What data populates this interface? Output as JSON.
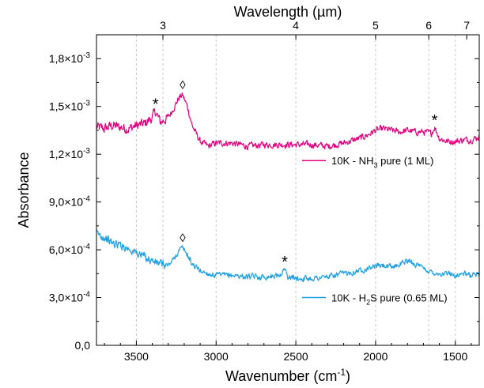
{
  "chart_data": {
    "type": "line",
    "title": "",
    "xlabel": "Wavenumber (cm",
    "xlabel_sup": "-1",
    "xlabel_end": ")",
    "ylabel": "Absorbance",
    "top_xlabel": "Wavelength (µm)",
    "xlim": [
      3750,
      1350
    ],
    "ylim": [
      0,
      0.00195
    ],
    "x_ticks": [
      {
        "value": 3500,
        "label": "3500"
      },
      {
        "value": 3000,
        "label": "3000"
      },
      {
        "value": 2500,
        "label": "2500"
      },
      {
        "value": 2000,
        "label": "2000"
      },
      {
        "value": 1500,
        "label": "1500"
      }
    ],
    "y_ticks": [
      {
        "value": 0,
        "label": "0,0",
        "exp": ""
      },
      {
        "value": 0.0003,
        "label": "3,0×10",
        "exp": "-4"
      },
      {
        "value": 0.0006,
        "label": "6,0×10",
        "exp": "-4"
      },
      {
        "value": 0.0009,
        "label": "9,0×10",
        "exp": "-4"
      },
      {
        "value": 0.0012,
        "label": "1,2×10",
        "exp": "-3"
      },
      {
        "value": 0.0015,
        "label": "1,5×10",
        "exp": "-3"
      },
      {
        "value": 0.0018,
        "label": "1,8×10",
        "exp": "-3"
      }
    ],
    "top_ticks": [
      {
        "wavenumber": 3333.3,
        "label": "3"
      },
      {
        "wavenumber": 2500,
        "label": "4"
      },
      {
        "wavenumber": 2000,
        "label": "5"
      },
      {
        "wavenumber": 1666.7,
        "label": "6"
      },
      {
        "wavenumber": 1428.6,
        "label": "7"
      }
    ],
    "gridlines_x": [
      3500,
      3333.3,
      3000,
      2500,
      2000,
      1666.7,
      1500
    ],
    "grid": "vertical dashed",
    "legend_placement": "right, next to each curve",
    "series": [
      {
        "name_pre": "10K - NH",
        "name_sub": "3",
        "name_post": " pure (1 ML)",
        "color": "#e6007e",
        "noise": 3.5e-05,
        "x": [
          3750,
          3700,
          3650,
          3600,
          3550,
          3500,
          3450,
          3400,
          3380,
          3350,
          3300,
          3260,
          3230,
          3210,
          3180,
          3150,
          3100,
          3050,
          3000,
          2900,
          2800,
          2700,
          2600,
          2500,
          2400,
          2300,
          2200,
          2100,
          2050,
          2000,
          1950,
          1900,
          1850,
          1800,
          1750,
          1700,
          1650,
          1630,
          1600,
          1550,
          1500,
          1450,
          1400,
          1350
        ],
        "y": [
          0.00137,
          0.00136,
          0.00138,
          0.00137,
          0.00136,
          0.00138,
          0.00139,
          0.00143,
          0.00147,
          0.0014,
          0.00143,
          0.0015,
          0.00156,
          0.00157,
          0.0015,
          0.00138,
          0.00128,
          0.00125,
          0.00127,
          0.00127,
          0.00125,
          0.00126,
          0.00126,
          0.00126,
          0.00126,
          0.00125,
          0.00127,
          0.0013,
          0.00132,
          0.00135,
          0.00136,
          0.00135,
          0.00134,
          0.00135,
          0.00134,
          0.00134,
          0.00133,
          0.00137,
          0.0013,
          0.00128,
          0.00128,
          0.00129,
          0.00129,
          0.00131
        ]
      },
      {
        "name_pre": "10K - H",
        "name_sub": "2",
        "name_post": "S pure (0.65 ML)",
        "color": "#1ea0e6",
        "noise": 3e-05,
        "x": [
          3750,
          3700,
          3650,
          3600,
          3550,
          3500,
          3450,
          3400,
          3350,
          3300,
          3260,
          3230,
          3210,
          3180,
          3150,
          3100,
          3050,
          3000,
          2900,
          2800,
          2700,
          2600,
          2570,
          2550,
          2500,
          2400,
          2300,
          2200,
          2100,
          2000,
          1950,
          1900,
          1850,
          1800,
          1750,
          1700,
          1650,
          1600,
          1550,
          1500,
          1450,
          1400,
          1350
        ],
        "y": [
          0.0007,
          0.00068,
          0.00064,
          0.00063,
          0.00061,
          0.00058,
          0.00056,
          0.00053,
          0.00051,
          0.0005,
          0.00055,
          0.0006,
          0.00061,
          0.00057,
          0.00051,
          0.00047,
          0.00045,
          0.00044,
          0.00044,
          0.00043,
          0.00043,
          0.00044,
          0.00048,
          0.00043,
          0.00042,
          0.00042,
          0.00043,
          0.00045,
          0.00047,
          0.0005,
          0.0005,
          0.00049,
          0.00051,
          0.00053,
          0.00051,
          0.00048,
          0.00046,
          0.00045,
          0.00045,
          0.00044,
          0.00045,
          0.00044,
          0.00045
        ]
      }
    ],
    "annotations": [
      {
        "text": "*",
        "x": 3380,
        "y": 0.00153,
        "series": 0
      },
      {
        "text": "◊",
        "x": 3210,
        "y": 0.00163,
        "series": 0
      },
      {
        "text": "*",
        "x": 1630,
        "y": 0.00143,
        "series": 0
      },
      {
        "text": "◊",
        "x": 3210,
        "y": 0.00067,
        "series": 1
      },
      {
        "text": "*",
        "x": 2570,
        "y": 0.00054,
        "series": 1
      }
    ]
  }
}
